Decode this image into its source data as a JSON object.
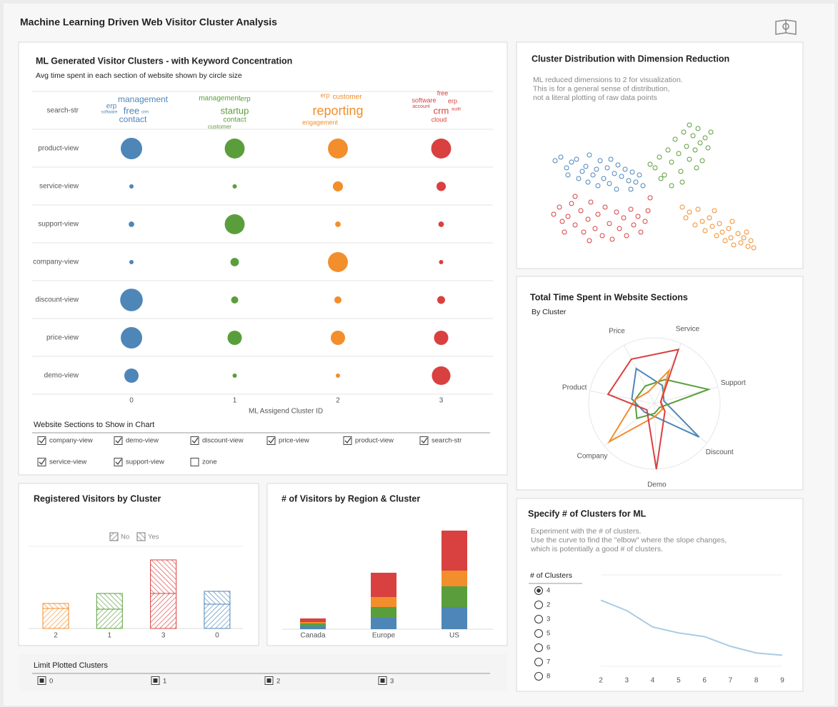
{
  "title": "Machine Learning Driven Web Visitor Cluster Analysis",
  "chart_data": [
    {
      "type": "bubble",
      "title": "ML Generated Visitor Clusters - with Keyword Concentration",
      "subtitle": "Avg time spent in each section of website shown by circle size",
      "x_label": "ML Assigend Cluster ID",
      "keyword_row": "search-str",
      "keywords": [
        [
          "management",
          "erp",
          "free",
          "software",
          "crm",
          "contact"
        ],
        [
          "management",
          "erp",
          "startup",
          "contact",
          "customer"
        ],
        [
          "erp",
          "customer",
          "reporting",
          "engagement"
        ],
        [
          "free",
          "software",
          "erp",
          "account",
          "crm",
          "audit",
          "cloud"
        ]
      ],
      "categories": [
        "product-view",
        "service-view",
        "support-view",
        "company-view",
        "discount-view",
        "price-view",
        "demo-view"
      ],
      "xticks": [
        0,
        1,
        2,
        3
      ],
      "series": [
        {
          "color": "#4e86b8",
          "values": [
            9,
            0.36,
            0.6,
            0.36,
            10,
            9,
            4
          ]
        },
        {
          "color": "#5a9e3c",
          "values": [
            7.8,
            0.36,
            7.8,
            1.4,
            1,
            4,
            0.36
          ]
        },
        {
          "color": "#f28e2b",
          "values": [
            7.8,
            2,
            0.6,
            7.8,
            1,
            4,
            0.36
          ]
        },
        {
          "color": "#d94040",
          "values": [
            7.8,
            1.7,
            0.6,
            0.36,
            1.2,
            4,
            6.8
          ]
        }
      ]
    },
    {
      "type": "scatter",
      "title": "Cluster Distribution with Dimension Reduction",
      "subtitle": [
        "ML reduced dimensions to 2 for visualization.",
        "This is for a general sense of distribution,",
        "not a literal plotting of raw data points"
      ],
      "series": [
        {
          "color": "#4e86b8",
          "x": [
            12,
            20,
            28,
            35,
            42,
            50,
            55,
            60,
            65,
            70,
            75,
            80,
            85,
            90,
            95,
            100,
            105,
            110,
            115,
            120,
            125,
            130,
            45,
            58,
            72,
            88,
            30,
            98,
            118,
            135
          ],
          "y": [
            60,
            55,
            70,
            62,
            58,
            75,
            68,
            52,
            80,
            72,
            60,
            85,
            70,
            58,
            78,
            66,
            82,
            72,
            88,
            76,
            90,
            80,
            85,
            90,
            95,
            92,
            80,
            100,
            100,
            95
          ]
        },
        {
          "color": "#d94040",
          "x": [
            10,
            18,
            22,
            30,
            35,
            40,
            48,
            52,
            58,
            62,
            68,
            72,
            78,
            82,
            88,
            92,
            98,
            102,
            108,
            112,
            118,
            122,
            128,
            132,
            138,
            142,
            145,
            60,
            40,
            25
          ],
          "y": [
            135,
            125,
            145,
            138,
            120,
            150,
            130,
            160,
            142,
            118,
            155,
            135,
            165,
            125,
            148,
            170,
            132,
            155,
            140,
            165,
            128,
            150,
            138,
            160,
            145,
            130,
            112,
            172,
            110,
            160
          ]
        },
        {
          "color": "#5a9e3c",
          "x": [
            145,
            152,
            158,
            165,
            170,
            175,
            180,
            185,
            188,
            192,
            196,
            200,
            205,
            208,
            212,
            215,
            218,
            222,
            226,
            190,
            175,
            160,
            200,
            210,
            230
          ],
          "y": [
            65,
            70,
            55,
            80,
            45,
            62,
            30,
            50,
            75,
            20,
            40,
            58,
            25,
            45,
            15,
            35,
            60,
            28,
            42,
            90,
            95,
            85,
            10,
            70,
            20
          ]
        },
        {
          "color": "#f28e2b",
          "x": [
            190,
            195,
            200,
            208,
            212,
            218,
            222,
            228,
            232,
            238,
            242,
            246,
            250,
            255,
            258,
            262,
            268,
            272,
            276,
            282,
            286,
            290,
            235,
            260,
            280
          ],
          "y": [
            125,
            140,
            132,
            150,
            128,
            145,
            158,
            140,
            152,
            165,
            148,
            160,
            172,
            155,
            168,
            178,
            162,
            175,
            168,
            180,
            172,
            182,
            130,
            145,
            160
          ]
        }
      ]
    },
    {
      "type": "radar",
      "title": "Total Time Spent in Website Sections",
      "subtitle": "By Cluster",
      "categories": [
        "Service",
        "Support",
        "Discount",
        "Demo",
        "Company",
        "Product",
        "Price"
      ],
      "ylim": [
        0,
        100
      ],
      "series": [
        {
          "color": "#4e86b8",
          "values": [
            30,
            15,
            85,
            20,
            20,
            35,
            60
          ]
        },
        {
          "color": "#5a9e3c",
          "values": [
            40,
            85,
            10,
            15,
            35,
            30,
            30
          ]
        },
        {
          "color": "#f28e2b",
          "values": [
            55,
            10,
            15,
            20,
            90,
            30,
            20
          ]
        },
        {
          "color": "#d94040",
          "values": [
            90,
            10,
            20,
            100,
            15,
            72,
            76
          ]
        }
      ]
    },
    {
      "type": "bar",
      "title": "Registered Visitors by Cluster",
      "categories": [
        "2",
        "1",
        "3",
        "0"
      ],
      "colors": [
        "#f28e2b",
        "#5a9e3c",
        "#d94040",
        "#4e86b8"
      ],
      "series": [
        {
          "name": "No",
          "hatch": "/",
          "values": [
            28,
            27,
            49,
            34
          ]
        },
        {
          "name": "Yes",
          "hatch": "\\",
          "values": [
            7,
            22,
            47,
            18
          ]
        }
      ]
    },
    {
      "type": "bar",
      "title": "# of Visitors by Region & Cluster",
      "categories": [
        "Canada",
        "Europe",
        "US"
      ],
      "series": [
        {
          "color": "#4e86b8",
          "values": [
            4,
            16,
            31
          ]
        },
        {
          "color": "#5a9e3c",
          "values": [
            4,
            15,
            29
          ]
        },
        {
          "color": "#f28e2b",
          "values": [
            2,
            14,
            22
          ]
        },
        {
          "color": "#d94040",
          "values": [
            5,
            34,
            56
          ]
        }
      ]
    },
    {
      "type": "line",
      "title": "Specify # of Clusters for ML",
      "subtitle": [
        "Experiment with the # of clusters.",
        "Use the curve to find the \"elbow\" where the slope changes,",
        "which is potentially a good # of clusters."
      ],
      "x": [
        2,
        3,
        4,
        5,
        6,
        7,
        8,
        9
      ],
      "values": [
        86,
        72,
        50,
        42,
        37,
        24,
        15,
        12
      ],
      "color": "#a9cce3",
      "xlim": [
        2,
        9
      ],
      "ylim": [
        0,
        120
      ],
      "xticks": [
        2,
        3,
        4,
        5,
        6,
        7,
        8,
        9
      ]
    }
  ],
  "section_filter": {
    "title": "Website Sections to Show in Chart",
    "options": [
      "company-view",
      "demo-view",
      "discount-view",
      "price-view",
      "product-view",
      "search-str",
      "service-view",
      "support-view",
      "zone"
    ],
    "checked": [
      true,
      true,
      true,
      true,
      true,
      true,
      true,
      true,
      false
    ]
  },
  "cluster_filter": {
    "title": "Limit Plotted Clusters",
    "options": [
      "0",
      "1",
      "2",
      "3"
    ],
    "checked": [
      true,
      true,
      true,
      true
    ]
  },
  "cluster_count": {
    "title": "# of Clusters",
    "options": [
      "4",
      "2",
      "3",
      "5",
      "6",
      "7",
      "8"
    ],
    "selected": 0
  }
}
